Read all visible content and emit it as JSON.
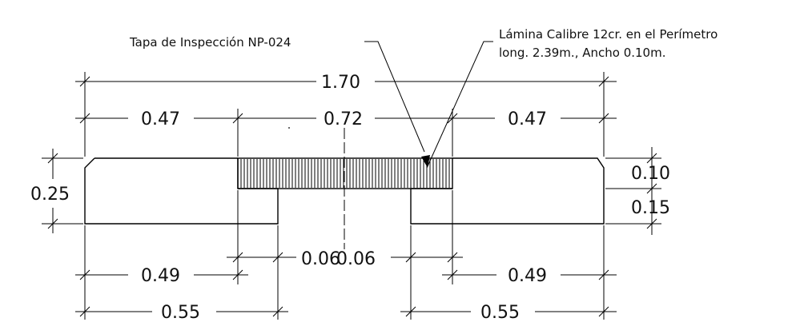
{
  "annotations": {
    "left_note": "Tapa de Inspección NP-024",
    "right_note_line1": "Lámina Calibre 12cr. en el Perímetro",
    "right_note_line2": "long. 2.39m., Ancho 0.10m."
  },
  "dimensions": {
    "overall": "1.70",
    "left_top": "0.47",
    "center_top": "0.72",
    "right_top": "0.47",
    "height_total": "0.25",
    "height_upper": "0.10",
    "height_lower": "0.15",
    "gap_left": "0.06",
    "gap_right": "0.06",
    "bottom_left_inner": "0.49",
    "bottom_right_inner": "0.49",
    "bottom_left_outer": "0.55",
    "bottom_right_outer": "0.55"
  }
}
